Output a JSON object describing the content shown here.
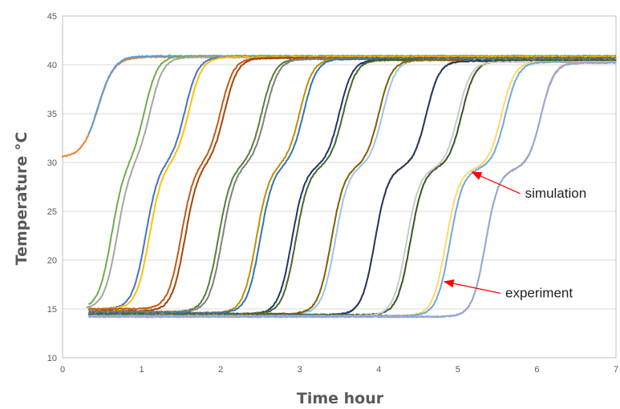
{
  "chart_data": {
    "type": "line",
    "title": "",
    "xlabel": "Time hour",
    "ylabel": "Temperature °C",
    "xlim": [
      0,
      7
    ],
    "ylim": [
      10,
      45
    ],
    "x_ticks": [
      0,
      1,
      2,
      3,
      4,
      5,
      6,
      7
    ],
    "y_ticks": [
      10,
      15,
      20,
      25,
      30,
      35,
      40,
      45
    ],
    "grid": "horizontal",
    "legend": "none",
    "annotations": [
      {
        "text": "simulation",
        "x": 5.85,
        "y": 26.4,
        "arrow_to": [
          5.18,
          29.0
        ]
      },
      {
        "text": "experiment",
        "x": 5.6,
        "y": 16.2,
        "arrow_to": [
          4.83,
          17.8
        ]
      }
    ],
    "series": [
      {
        "color": "#ed7d31",
        "t0": 0.33,
        "x_end": 7.0,
        "baseline": 30.5,
        "plateau": 40.8,
        "k": 10.0,
        "step": 0.45,
        "start_y": 30.5
      },
      {
        "color": "#5b9bd5",
        "t0": 0.33,
        "x_end": 7.0,
        "baseline": 30.5,
        "plateau": 40.9,
        "k": 10.0,
        "step": 0.45
      },
      {
        "color": "#70ad47",
        "t0": 0.62,
        "x_end": 7.0,
        "baseline": 15.0,
        "plateau": 40.9,
        "k": 12.0,
        "step": 0.42,
        "x_start": 0.33
      },
      {
        "color": "#a5a5a5",
        "t0": 0.69,
        "x_end": 7.0,
        "baseline": 15.0,
        "plateau": 40.8,
        "k": 12.0,
        "step": 0.42,
        "x_start": 0.3
      },
      {
        "color": "#4472c4",
        "t0": 1.05,
        "x_end": 7.0,
        "baseline": 15.0,
        "plateau": 40.8,
        "k": 12.0,
        "step": 0.5,
        "x_start": 0.33
      },
      {
        "color": "#ffc000",
        "t0": 1.1,
        "x_end": 7.0,
        "baseline": 15.0,
        "plateau": 40.8,
        "k": 12.0,
        "step": 0.5
      },
      {
        "color": "#c55a11",
        "t0": 1.5,
        "x_end": 7.0,
        "baseline": 15.0,
        "plateau": 40.7,
        "k": 12.0,
        "step": 0.5,
        "x_start": 0.33
      },
      {
        "color": "#9e480e",
        "t0": 1.55,
        "x_end": 7.0,
        "baseline": 14.8,
        "plateau": 40.7,
        "k": 12.0,
        "step": 0.5
      },
      {
        "color": "#548235",
        "t0": 1.97,
        "x_end": 7.0,
        "baseline": 14.7,
        "plateau": 40.6,
        "k": 12.0,
        "step": 0.55
      },
      {
        "color": "#7f7f7f",
        "t0": 2.02,
        "x_end": 7.0,
        "baseline": 14.7,
        "plateau": 40.6,
        "k": 12.0,
        "step": 0.55
      },
      {
        "color": "#bf9000",
        "t0": 2.45,
        "x_end": 7.0,
        "baseline": 14.6,
        "plateau": 40.6,
        "k": 12.0,
        "step": 0.55
      },
      {
        "color": "#2e75b6",
        "t0": 2.5,
        "x_end": 7.0,
        "baseline": 14.6,
        "plateau": 40.6,
        "k": 12.0,
        "step": 0.55
      },
      {
        "color": "#203864",
        "t0": 2.9,
        "x_end": 7.0,
        "baseline": 14.5,
        "plateau": 40.5,
        "k": 12.0,
        "step": 0.6
      },
      {
        "color": "#43682b",
        "t0": 2.95,
        "x_end": 7.0,
        "baseline": 14.5,
        "plateau": 40.5,
        "k": 12.0,
        "step": 0.6
      },
      {
        "color": "#9dc3e6",
        "t0": 3.45,
        "x_end": 7.0,
        "baseline": 14.5,
        "plateau": 40.5,
        "k": 12.0,
        "step": 0.6
      },
      {
        "color": "#806000",
        "t0": 3.4,
        "x_end": 7.0,
        "baseline": 14.5,
        "plateau": 40.5,
        "k": 12.0,
        "step": 0.6
      },
      {
        "color": "#f4b183",
        "t0": 3.95,
        "x_end": 7.0,
        "baseline": 14.4,
        "plateau": 40.4,
        "k": 12.0,
        "step": 0.65
      },
      {
        "color": "#1f3864",
        "t0": 3.95,
        "x_end": 7.0,
        "baseline": 14.4,
        "plateau": 40.4,
        "k": 12.0,
        "step": 0.65
      },
      {
        "color": "#375623",
        "t0": 4.4,
        "x_end": 7.0,
        "baseline": 14.4,
        "plateau": 40.4,
        "k": 12.0,
        "step": 0.65
      },
      {
        "color": "#c9c9c9",
        "t0": 4.35,
        "x_end": 7.0,
        "baseline": 14.3,
        "plateau": 40.3,
        "k": 12.0,
        "step": 0.65
      },
      {
        "color": "#ffd966",
        "t0": 4.85,
        "x_end": 7.0,
        "baseline": 14.3,
        "plateau": 40.3,
        "k": 12.0,
        "step": 0.7
      },
      {
        "color": "#6fa8dc",
        "t0": 4.9,
        "x_end": 7.0,
        "baseline": 14.3,
        "plateau": 40.3,
        "k": 12.0,
        "step": 0.7
      },
      {
        "color": "#f4a582",
        "t0": 5.35,
        "x_end": 7.0,
        "baseline": 14.2,
        "plateau": 40.3,
        "k": 12.0,
        "step": 0.7
      },
      {
        "color": "#8ea9db",
        "t0": 5.35,
        "x_end": 7.0,
        "baseline": 14.2,
        "plateau": 40.2,
        "k": 12.0,
        "step": 0.7
      }
    ]
  }
}
